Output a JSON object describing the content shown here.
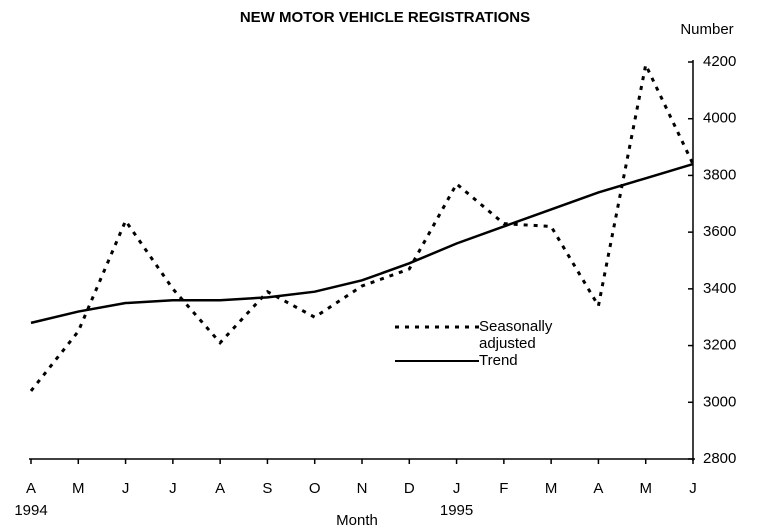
{
  "chart_data": {
    "type": "line",
    "title": "NEW MOTOR VEHICLE REGISTRATIONS",
    "y_axis_label": "Number",
    "x_axis_label": "Month",
    "categories": [
      "A",
      "M",
      "J",
      "J",
      "A",
      "S",
      "O",
      "N",
      "D",
      "J",
      "F",
      "M",
      "A",
      "M",
      "J"
    ],
    "years": [
      "1994",
      null,
      null,
      null,
      null,
      null,
      null,
      null,
      null,
      "1995",
      null,
      null,
      null,
      null,
      null
    ],
    "series": [
      {
        "name": "Seasonally adjusted",
        "color": "#000000",
        "dashed": true,
        "values": [
          3040,
          3250,
          3640,
          3400,
          3210,
          3390,
          3300,
          3410,
          3470,
          3770,
          3630,
          3620,
          3340,
          4190,
          3840
        ]
      },
      {
        "name": "Trend",
        "color": "#000000",
        "dashed": false,
        "values": [
          3280,
          3320,
          3350,
          3360,
          3360,
          3370,
          3390,
          3430,
          3490,
          3560,
          3620,
          3680,
          3740,
          3790,
          3840
        ]
      }
    ],
    "ylim": [
      2800,
      4200
    ],
    "yticks": [
      2800,
      3000,
      3200,
      3400,
      3600,
      3800,
      4000,
      4200
    ],
    "y_axis_side": "right",
    "legend": "center",
    "grid": false
  }
}
